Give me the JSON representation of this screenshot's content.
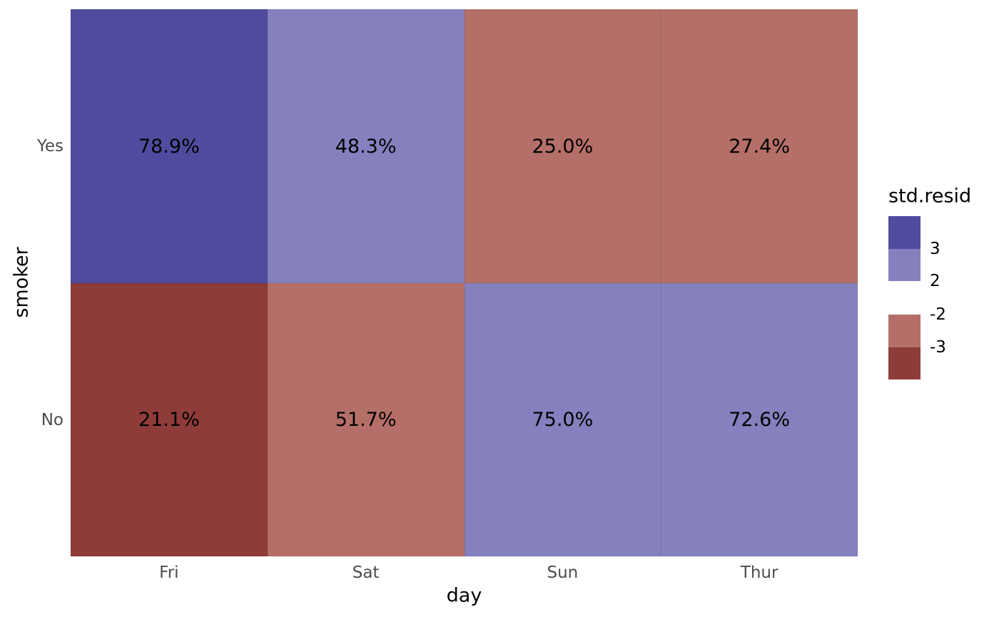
{
  "chart_data": {
    "type": "heatmap",
    "title": "",
    "xlabel": "day",
    "ylabel": "smoker",
    "x_categories": [
      "Fri",
      "Sat",
      "Sun",
      "Thur"
    ],
    "y_categories": [
      "Yes",
      "No"
    ],
    "value_unit": "percent",
    "rows": [
      {
        "y": "Yes",
        "cells": [
          {
            "x": "Fri",
            "label": "78.9%",
            "value": 78.9,
            "std_resid_bin": "> 3",
            "color": "#4F4C9E"
          },
          {
            "x": "Sat",
            "label": "48.3%",
            "value": 48.3,
            "std_resid_bin": "2 to 3",
            "color": "#8580BE"
          },
          {
            "x": "Sun",
            "label": "25.0%",
            "value": 25.0,
            "std_resid_bin": "-3 to -2",
            "color": "#B46F68"
          },
          {
            "x": "Thur",
            "label": "27.4%",
            "value": 27.4,
            "std_resid_bin": "-3 to -2",
            "color": "#B46F68"
          }
        ]
      },
      {
        "y": "No",
        "cells": [
          {
            "x": "Fri",
            "label": "21.1%",
            "value": 21.1,
            "std_resid_bin": "< -3",
            "color": "#8E3C39"
          },
          {
            "x": "Sat",
            "label": "51.7%",
            "value": 51.7,
            "std_resid_bin": "-3 to -2",
            "color": "#B46F68"
          },
          {
            "x": "Sun",
            "label": "75.0%",
            "value": 75.0,
            "std_resid_bin": "2 to 3",
            "color": "#8580BE"
          },
          {
            "x": "Thur",
            "label": "72.6%",
            "value": 72.6,
            "std_resid_bin": "2 to 3",
            "color": "#8580BE"
          }
        ]
      }
    ],
    "legend": {
      "title": "std.resid",
      "position": "right",
      "entries": [
        {
          "color": "#4F4C9E",
          "label": "3",
          "label_side": "bottom",
          "group": 1
        },
        {
          "color": "#8580BE",
          "label": "2",
          "label_side": "bottom",
          "group": 1
        },
        {
          "color": "#B46F68",
          "label": "-2",
          "label_side": "top",
          "group": 2
        },
        {
          "color": "#8E3C39",
          "label": "-3",
          "label_side": "top",
          "group": 2
        }
      ]
    },
    "colors": {
      "pos_high": "#4F4C9E",
      "pos_low": "#8580BE",
      "neg_low": "#B46F68",
      "neg_high": "#8E3C39",
      "tick_label": "#4d4d4d",
      "text": "#000000",
      "background": "#ffffff"
    },
    "layout_hints": {
      "grid": "off",
      "axis_ticks": "none",
      "legend_style": "split colorbar, blue positive above, red negative below"
    }
  }
}
